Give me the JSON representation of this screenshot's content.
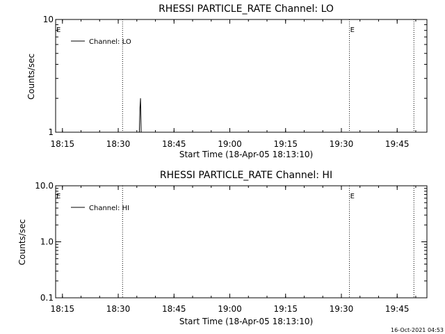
{
  "chart_data": [
    {
      "type": "line",
      "title": "RHESSI PARTICLE_RATE Channel: LO",
      "xlabel": "Start Time (18-Apr-05 18:13:10)",
      "ylabel": "Counts/sec",
      "y_scale": "log",
      "ylim": [
        1,
        10
      ],
      "y_ticks": [
        "1",
        "10"
      ],
      "x_ticks": [
        "18:15",
        "18:30",
        "18:45",
        "19:00",
        "19:15",
        "19:30",
        "19:45"
      ],
      "x_range": [
        "18:13:10",
        "19:53:00"
      ],
      "legend": {
        "position": "top-left",
        "label": "Channel: LO"
      },
      "event_markers": [
        {
          "time": "18:13:10",
          "label": "E"
        },
        {
          "time": "18:31:10",
          "label": ""
        },
        {
          "time": "19:32:10",
          "label": "E"
        },
        {
          "time": "19:49:30",
          "label": ""
        }
      ],
      "series": [
        {
          "name": "Channel: LO",
          "points": [
            [
              "18:35:40",
              1
            ],
            [
              "18:35:50",
              1.6
            ],
            [
              "18:36:00",
              2
            ],
            [
              "18:36:10",
              1
            ]
          ]
        }
      ]
    },
    {
      "type": "line",
      "title": "RHESSI PARTICLE_RATE Channel: HI",
      "xlabel": "Start Time (18-Apr-05 18:13:10)",
      "ylabel": "Counts/sec",
      "y_scale": "log",
      "ylim": [
        0.1,
        10
      ],
      "y_ticks": [
        "0.1",
        "1.0",
        "10.0"
      ],
      "x_ticks": [
        "18:15",
        "18:30",
        "18:45",
        "19:00",
        "19:15",
        "19:30",
        "19:45"
      ],
      "x_range": [
        "18:13:10",
        "19:53:00"
      ],
      "legend": {
        "position": "top-left",
        "label": "Channel: HI"
      },
      "event_markers": [
        {
          "time": "18:13:10",
          "label": "E"
        },
        {
          "time": "18:31:10",
          "label": ""
        },
        {
          "time": "19:32:10",
          "label": "E"
        },
        {
          "time": "19:49:30",
          "label": ""
        }
      ],
      "series": [
        {
          "name": "Channel: HI",
          "points": []
        }
      ]
    }
  ],
  "footer": {
    "timestamp": "16-Oct-2021 04:53"
  }
}
